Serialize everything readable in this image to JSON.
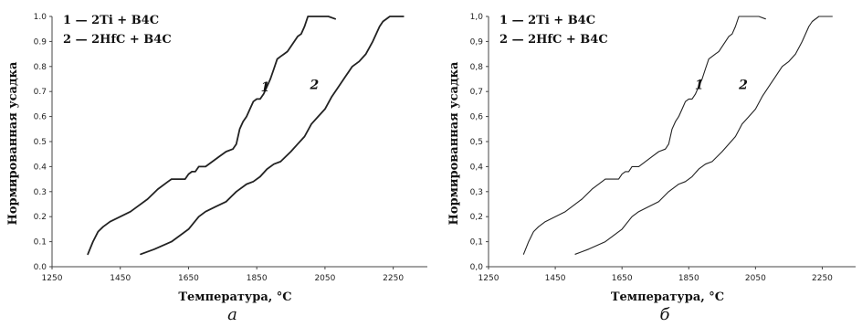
{
  "chart_data": [
    {
      "type": "line",
      "panel_label": "а",
      "xlabel": "Температура, °С",
      "ylabel": "Нормированная усадка",
      "xlim": [
        1250,
        2350
      ],
      "ylim": [
        0,
        1.0
      ],
      "x_ticks": [
        "1250",
        "1450",
        "1650",
        "1850",
        "2050",
        "2250"
      ],
      "y_ticks": [
        "0.0",
        "0.1",
        "0.2",
        "0.3",
        "0.4",
        "0.5",
        "0.6",
        "0.7",
        "0.8",
        "0.9",
        "1.0"
      ],
      "legend_position": "top-left",
      "series": [
        {
          "name": "1 — 2Ti + B4C",
          "curve_label": "1",
          "x": [
            1355,
            1370,
            1385,
            1400,
            1420,
            1450,
            1480,
            1500,
            1530,
            1560,
            1590,
            1600,
            1620,
            1640,
            1650,
            1660,
            1670,
            1680,
            1700,
            1720,
            1740,
            1760,
            1780,
            1790,
            1800,
            1810,
            1820,
            1830,
            1840,
            1850,
            1860,
            1870,
            1880,
            1890,
            1900,
            1910,
            1920,
            1930,
            1940,
            1960,
            1970,
            1980,
            1990,
            2000,
            2010,
            2020,
            2040,
            2060,
            2080
          ],
          "y": [
            0.05,
            0.1,
            0.14,
            0.16,
            0.18,
            0.2,
            0.22,
            0.24,
            0.27,
            0.31,
            0.34,
            0.35,
            0.35,
            0.35,
            0.37,
            0.38,
            0.38,
            0.4,
            0.4,
            0.42,
            0.44,
            0.46,
            0.47,
            0.49,
            0.55,
            0.58,
            0.6,
            0.63,
            0.66,
            0.67,
            0.67,
            0.69,
            0.72,
            0.75,
            0.79,
            0.83,
            0.84,
            0.85,
            0.86,
            0.9,
            0.92,
            0.93,
            0.96,
            1.0,
            1.0,
            1.0,
            1.0,
            1.0,
            0.99
          ]
        },
        {
          "name": "2 — 2HfC + B4C",
          "curve_label": "2",
          "x": [
            1510,
            1550,
            1600,
            1650,
            1680,
            1700,
            1730,
            1760,
            1790,
            1820,
            1840,
            1860,
            1880,
            1900,
            1920,
            1950,
            1970,
            1990,
            2010,
            2030,
            2050,
            2070,
            2090,
            2110,
            2130,
            2150,
            2170,
            2190,
            2210,
            2220,
            2240,
            2260,
            2280
          ],
          "y": [
            0.05,
            0.07,
            0.1,
            0.15,
            0.2,
            0.22,
            0.24,
            0.26,
            0.3,
            0.33,
            0.34,
            0.36,
            0.39,
            0.41,
            0.42,
            0.46,
            0.49,
            0.52,
            0.57,
            0.6,
            0.63,
            0.68,
            0.72,
            0.76,
            0.8,
            0.82,
            0.85,
            0.9,
            0.96,
            0.98,
            1.0,
            1.0,
            1.0
          ]
        }
      ]
    },
    {
      "type": "line",
      "panel_label": "б",
      "xlabel": "Температура, °С",
      "ylabel": "Нормированная усадка",
      "xlim": [
        1250,
        2350
      ],
      "ylim": [
        0,
        1.0
      ],
      "x_ticks": [
        "1250",
        "1450",
        "1650",
        "1850",
        "2050",
        "2250"
      ],
      "y_ticks": [
        "0,0",
        "0,1",
        "0,2",
        "0,3",
        "0,4",
        "0,5",
        "0,6",
        "0,7",
        "0,8",
        "0,9",
        "1,0"
      ],
      "legend_position": "top-left",
      "series": [
        {
          "name": "1 — 2Ti + B4C",
          "curve_label": "1",
          "x": [
            1355,
            1370,
            1385,
            1400,
            1420,
            1450,
            1480,
            1500,
            1530,
            1560,
            1590,
            1600,
            1620,
            1640,
            1650,
            1660,
            1670,
            1680,
            1700,
            1720,
            1740,
            1760,
            1780,
            1790,
            1800,
            1810,
            1820,
            1830,
            1840,
            1850,
            1860,
            1870,
            1880,
            1890,
            1900,
            1910,
            1920,
            1930,
            1940,
            1960,
            1970,
            1980,
            1990,
            2000,
            2010,
            2020,
            2040,
            2060,
            2080
          ],
          "y": [
            0.05,
            0.1,
            0.14,
            0.16,
            0.18,
            0.2,
            0.22,
            0.24,
            0.27,
            0.31,
            0.34,
            0.35,
            0.35,
            0.35,
            0.37,
            0.38,
            0.38,
            0.4,
            0.4,
            0.42,
            0.44,
            0.46,
            0.47,
            0.49,
            0.55,
            0.58,
            0.6,
            0.63,
            0.66,
            0.67,
            0.67,
            0.69,
            0.72,
            0.75,
            0.79,
            0.83,
            0.84,
            0.85,
            0.86,
            0.9,
            0.92,
            0.93,
            0.96,
            1.0,
            1.0,
            1.0,
            1.0,
            1.0,
            0.99
          ]
        },
        {
          "name": "2 — 2HfC + B4C",
          "curve_label": "2",
          "x": [
            1510,
            1550,
            1600,
            1650,
            1680,
            1700,
            1730,
            1760,
            1790,
            1820,
            1840,
            1860,
            1880,
            1900,
            1920,
            1950,
            1970,
            1990,
            2010,
            2030,
            2050,
            2070,
            2090,
            2110,
            2130,
            2150,
            2170,
            2190,
            2210,
            2220,
            2240,
            2260,
            2280
          ],
          "y": [
            0.05,
            0.07,
            0.1,
            0.15,
            0.2,
            0.22,
            0.24,
            0.26,
            0.3,
            0.33,
            0.34,
            0.36,
            0.39,
            0.41,
            0.42,
            0.46,
            0.49,
            0.52,
            0.57,
            0.6,
            0.63,
            0.68,
            0.72,
            0.76,
            0.8,
            0.82,
            0.85,
            0.9,
            0.96,
            0.98,
            1.0,
            1.0,
            1.0
          ]
        }
      ]
    }
  ],
  "colors": {
    "line": "#222222",
    "axis": "#444444"
  }
}
